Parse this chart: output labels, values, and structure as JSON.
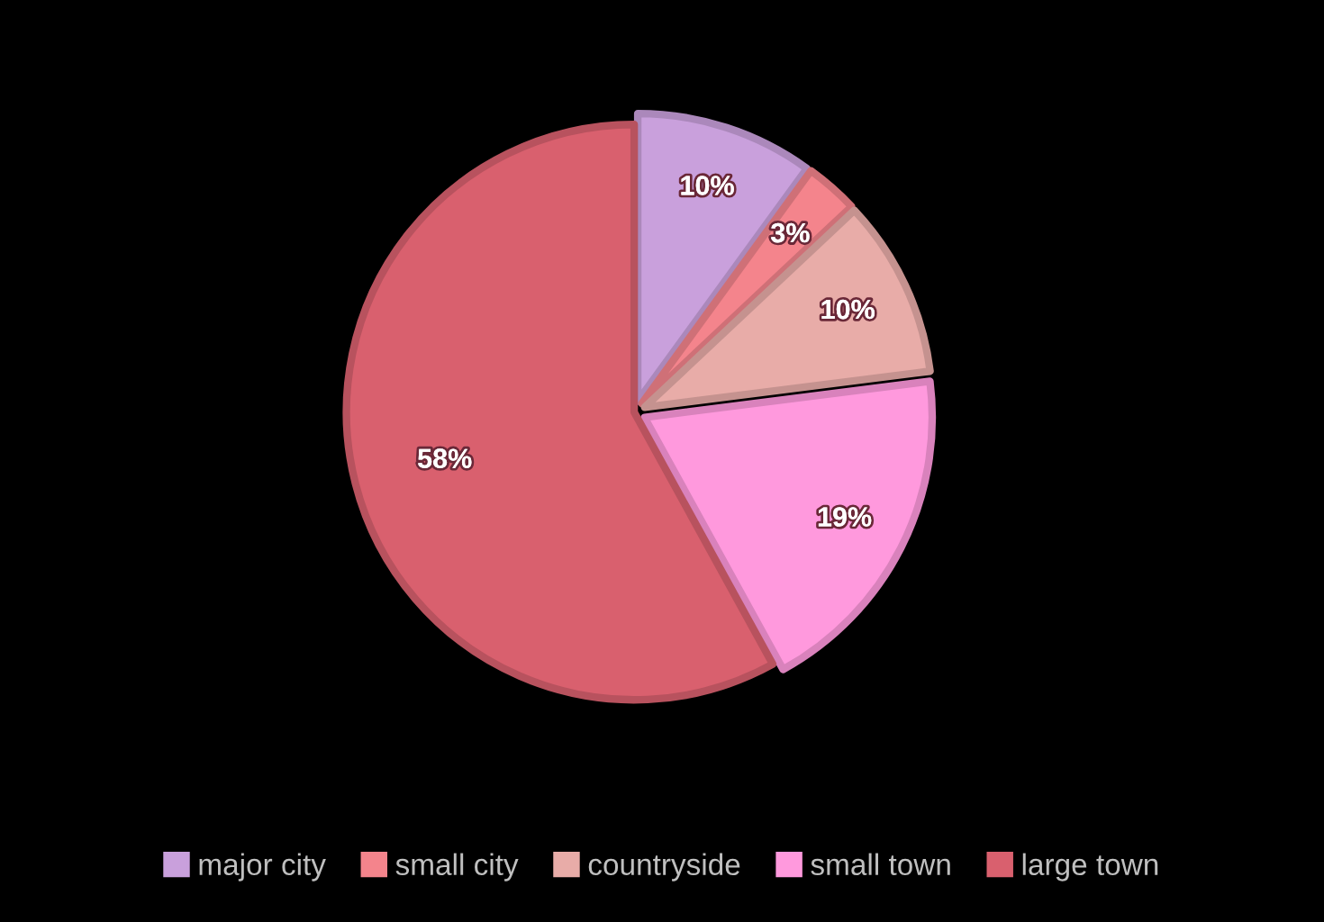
{
  "chart_data": {
    "type": "pie",
    "categories": [
      "major city",
      "small city",
      "countryside",
      "small town",
      "large town"
    ],
    "values": [
      10,
      3,
      10,
      19,
      58
    ],
    "colors": [
      "#c9a0dc",
      "#f4848c",
      "#e8aca8",
      "#ff99dd",
      "#d9606e"
    ],
    "value_labels": [
      "10%",
      "3%",
      "10%",
      "19%",
      "58%"
    ],
    "legend": "bottom"
  }
}
